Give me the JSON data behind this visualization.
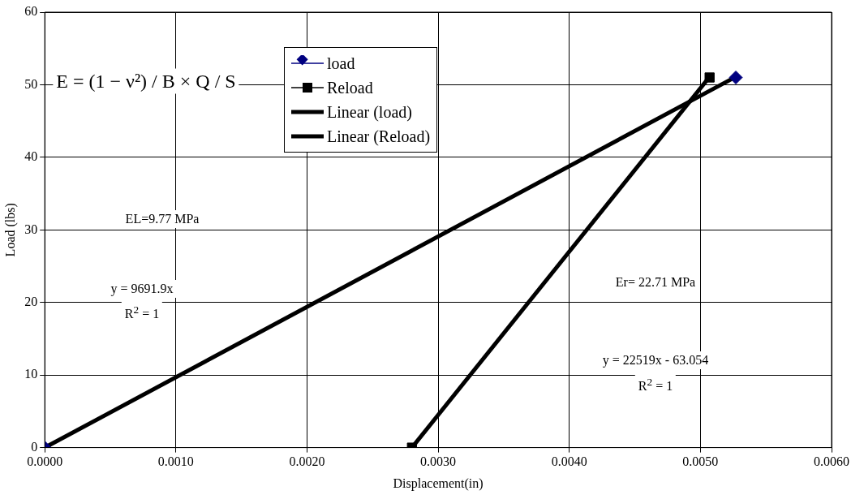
{
  "chart_data": {
    "type": "line",
    "xlabel": "Displacement(in)",
    "ylabel": "Load (lbs)",
    "series": [
      {
        "name": "load",
        "type": "scatter",
        "color": "#000080",
        "marker": "diamond",
        "x": [
          0,
          0.00527
        ],
        "values": [
          0,
          51
        ]
      },
      {
        "name": "Reload",
        "type": "scatter",
        "color": "#000000",
        "marker": "square",
        "x": [
          0.0028,
          0.00507
        ],
        "values": [
          0,
          51
        ]
      },
      {
        "name": "Linear (load)",
        "color": "#000000",
        "x": [
          0,
          0.00527
        ],
        "values": [
          0,
          51.1
        ]
      },
      {
        "name": "Linear (Reload)",
        "color": "#000000",
        "x": [
          0.0028,
          0.00507
        ],
        "values": [
          0,
          51.1
        ]
      }
    ],
    "xlim": [
      0,
      0.006
    ],
    "xticks": [
      {
        "value": 0,
        "label": "0.0000"
      },
      {
        "value": 0.001,
        "label": "0.0010"
      },
      {
        "value": 0.002,
        "label": "0.0020"
      },
      {
        "value": 0.003,
        "label": "0.0030"
      },
      {
        "value": 0.004,
        "label": "0.0040"
      },
      {
        "value": 0.005,
        "label": "0.0050"
      },
      {
        "value": 0.006,
        "label": "0.0060"
      }
    ],
    "ylim": [
      0,
      60
    ],
    "yticks": [
      0,
      10,
      20,
      30,
      40,
      50,
      60
    ],
    "grid": true,
    "legend": "top",
    "annotations": [
      "E = (1 − ν²) / B × Q / S",
      "EL=9.77 MPa",
      "y = 9691.9x",
      "R$^{2}$ = 1",
      "Er= 22.71 MPa",
      "y = 22519x - 63.054",
      "R$^{2}$ = 1"
    ]
  }
}
